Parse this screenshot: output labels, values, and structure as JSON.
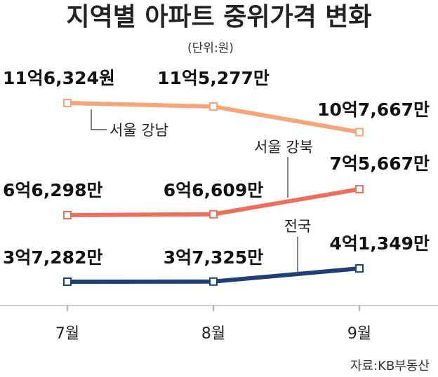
{
  "chart_data": {
    "type": "line",
    "title": "지역별 아파트 중위가격 변화",
    "unit": "(단위:원)",
    "source": "자료:KB부동산",
    "categories": [
      "7월",
      "8월",
      "9월"
    ],
    "series": [
      {
        "name": "서울 강남",
        "color": "#f5a57a",
        "values": [
          1163240000,
          1152770000,
          1076670000
        ],
        "labels": [
          "11억6,324원",
          "11억5,277만",
          "10억7,667만"
        ]
      },
      {
        "name": "서울 강북",
        "color": "#ec6f5b",
        "values": [
          662980000,
          666090000,
          756670000
        ],
        "labels": [
          "6억6,298만",
          "6억6,609만",
          "7억5,667만"
        ]
      },
      {
        "name": "전국",
        "color": "#1f3f79",
        "values": [
          372820000,
          373250000,
          413490000
        ],
        "labels": [
          "3억7,282만",
          "3억7,325만",
          "4억1,349만"
        ]
      }
    ]
  }
}
